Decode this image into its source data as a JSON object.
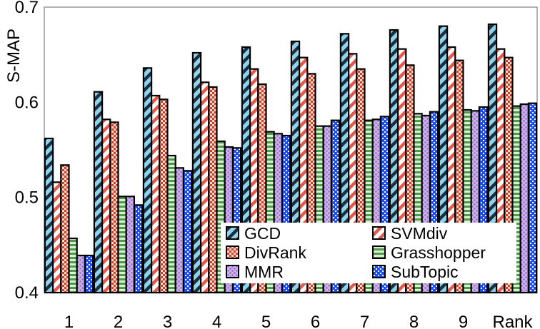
{
  "chart_data": {
    "type": "bar",
    "title": "",
    "xlabel": "",
    "ylabel": "S-MAP",
    "ylim": [
      0.4,
      0.7
    ],
    "yticks": [
      0.4,
      0.5,
      0.6,
      0.7
    ],
    "ytick_labels": [
      "0.4",
      "0.5",
      "0.6",
      "0.7"
    ],
    "grid": true,
    "legend_position": "bottom-right",
    "categories": [
      "1",
      "2",
      "3",
      "4",
      "5",
      "6",
      "7",
      "8",
      "9",
      "Rank"
    ],
    "series": [
      {
        "name": "GCD",
        "pattern": "diagonal-hatch",
        "color_a": "#8fd3ea",
        "color_b": "#1c2f40",
        "values": [
          0.562,
          0.611,
          0.636,
          0.652,
          0.658,
          0.664,
          0.672,
          0.676,
          0.68,
          0.682
        ]
      },
      {
        "name": "SVMdiv",
        "pattern": "diagonal-hatch",
        "color_a": "#ffffff",
        "color_b": "#e5584a",
        "values": [
          0.516,
          0.582,
          0.607,
          0.621,
          0.635,
          0.647,
          0.651,
          0.656,
          0.658,
          0.656
        ]
      },
      {
        "name": "DivRank",
        "pattern": "checker",
        "color_a": "#c9402c",
        "color_b": "#ffd9c9",
        "values": [
          0.534,
          0.579,
          0.603,
          0.616,
          0.619,
          0.63,
          0.635,
          0.639,
          0.644,
          0.647
        ]
      },
      {
        "name": "Grasshopper",
        "pattern": "horizontal-stripe",
        "color_a": "#4f9a4a",
        "color_b": "#d9f0d6",
        "values": [
          0.457,
          0.501,
          0.544,
          0.559,
          0.569,
          0.575,
          0.581,
          0.588,
          0.592,
          0.596
        ]
      },
      {
        "name": "MMR",
        "pattern": "dots",
        "color_a": "#ccb2ea",
        "color_b": "#8d63c2",
        "values": [
          0.439,
          0.501,
          0.531,
          0.553,
          0.567,
          0.575,
          0.582,
          0.586,
          0.591,
          0.598
        ]
      },
      {
        "name": "SubTopic",
        "pattern": "grid",
        "color_a": "#1b4cf0",
        "color_b": "#ffffff",
        "values": [
          0.439,
          0.492,
          0.528,
          0.552,
          0.565,
          0.581,
          0.585,
          0.59,
          0.595,
          0.599
        ]
      }
    ]
  }
}
